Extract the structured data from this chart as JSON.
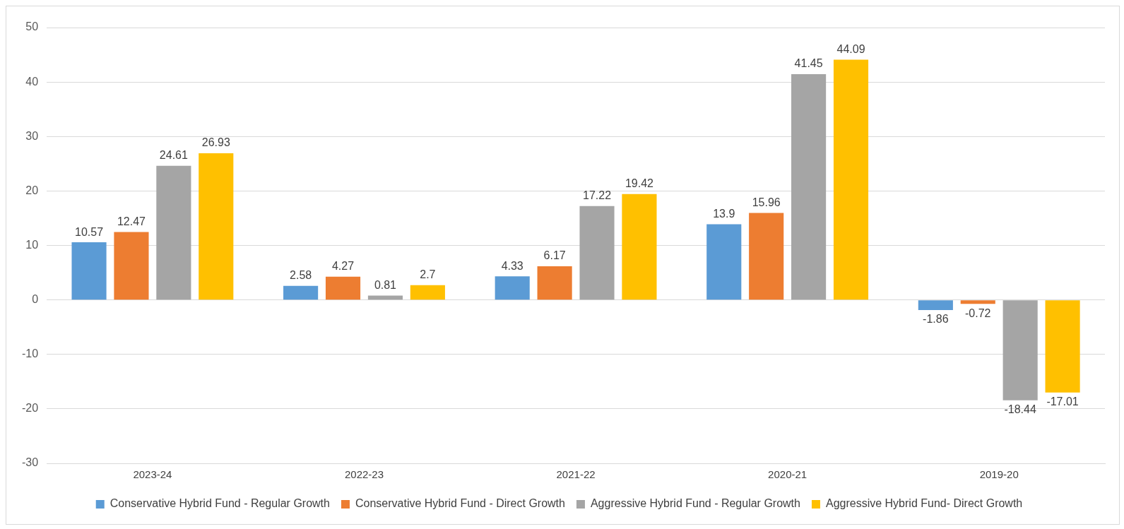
{
  "chart_data": {
    "type": "bar",
    "categories": [
      "2023-24",
      "2022-23",
      "2021-22",
      "2020-21",
      "2019-20"
    ],
    "series": [
      {
        "name": "Conservative Hybrid Fund - Regular Growth",
        "color": "#5b9bd5",
        "values": [
          10.57,
          2.58,
          4.33,
          13.9,
          -1.86
        ]
      },
      {
        "name": "Conservative Hybrid Fund - Direct Growth",
        "color": "#ed7d31",
        "values": [
          12.47,
          4.27,
          6.17,
          15.96,
          -0.72
        ]
      },
      {
        "name": "Aggressive Hybrid Fund - Regular Growth",
        "color": "#a5a5a5",
        "values": [
          24.61,
          0.81,
          17.22,
          41.45,
          -18.44
        ]
      },
      {
        "name": "Aggressive Hybrid Fund- Direct Growth",
        "color": "#ffc000",
        "values": [
          26.93,
          2.7,
          19.42,
          44.09,
          -17.01
        ]
      }
    ],
    "ylim": [
      -30,
      50
    ],
    "yticks": [
      -30,
      -20,
      -10,
      0,
      10,
      20,
      30,
      40,
      50
    ],
    "grid": "y",
    "legend": "bottom",
    "data_labels": true
  }
}
